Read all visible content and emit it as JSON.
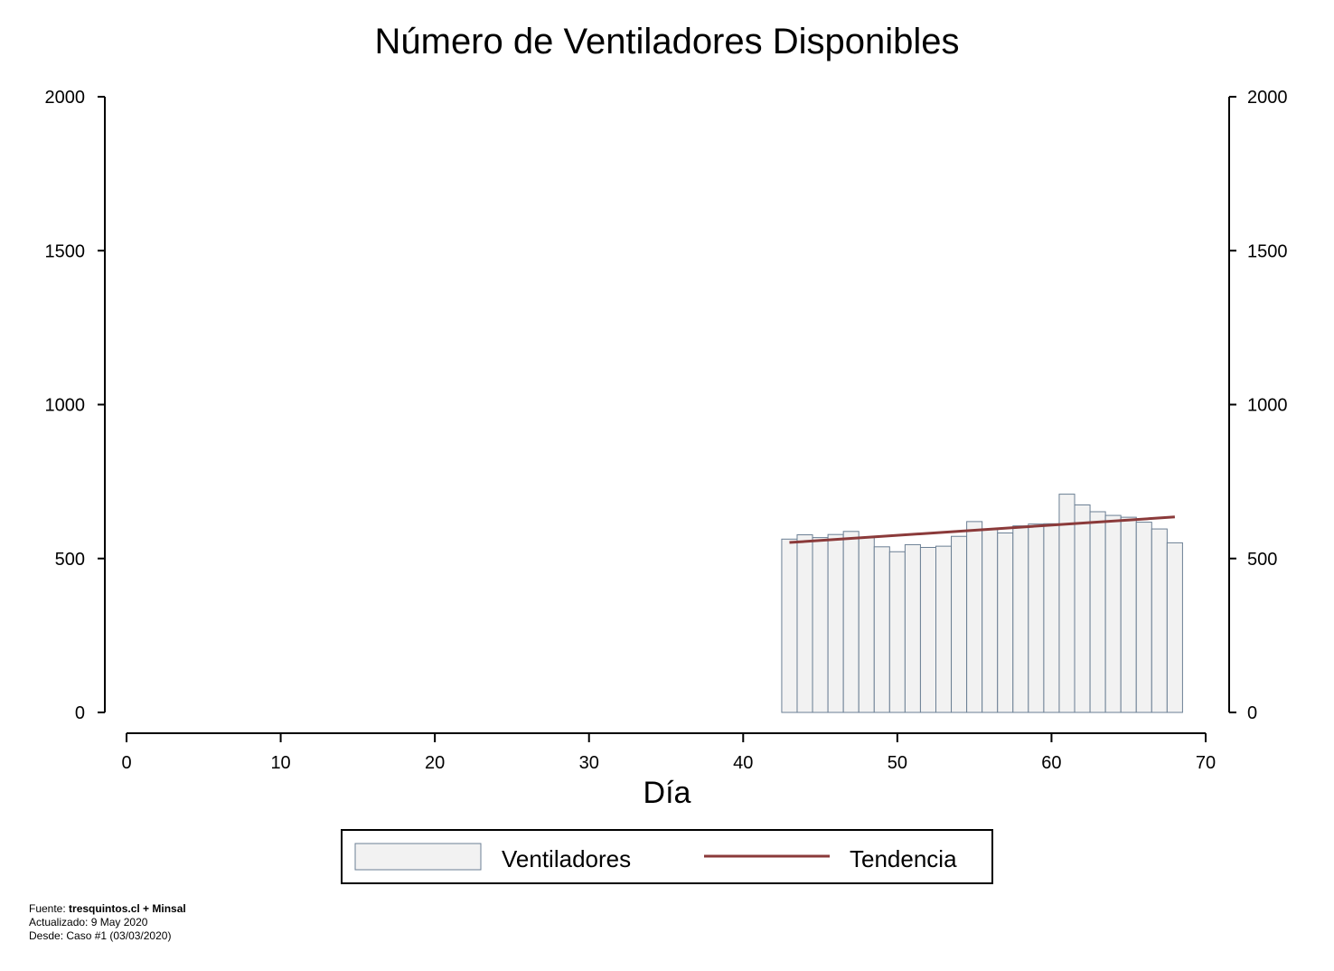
{
  "chart_data": {
    "type": "bar",
    "title": "Número de Ventiladores Disponibles",
    "xlabel": "Día",
    "ylabel": "",
    "xlim": [
      0,
      70
    ],
    "ylim": [
      0,
      2000
    ],
    "x_ticks": [
      0,
      10,
      20,
      30,
      40,
      50,
      60,
      70
    ],
    "y_ticks": [
      0,
      500,
      1000,
      1500,
      2000
    ],
    "secondary_y_axis": true,
    "grid": false,
    "legend_position": "bottom",
    "series": [
      {
        "name": "Ventiladores",
        "type": "bar",
        "color": "#f2f2f2",
        "edge_color": "#6b7f94",
        "x": [
          43,
          44,
          45,
          46,
          47,
          48,
          49,
          50,
          51,
          52,
          53,
          54,
          55,
          56,
          57,
          58,
          59,
          60,
          61,
          62,
          63,
          64,
          65,
          66,
          67,
          68
        ],
        "values": [
          563,
          577,
          568,
          578,
          588,
          568,
          538,
          522,
          545,
          536,
          540,
          572,
          620,
          594,
          583,
          606,
          612,
          613,
          709,
          674,
          652,
          640,
          634,
          618,
          596,
          551
        ]
      },
      {
        "name": "Tendencia",
        "type": "line",
        "color": "#8b3a3a",
        "x": [
          43,
          68
        ],
        "values": [
          552,
          635
        ]
      }
    ]
  },
  "legend": {
    "bars_label": "Ventiladores",
    "line_label": "Tendencia"
  },
  "footer": {
    "source_prefix": "Fuente: ",
    "source_bold": "tresquintos.cl + Minsal",
    "updated": "Actualizado: 9 May 2020",
    "since": "Desde: Caso #1  (03/03/2020)"
  }
}
